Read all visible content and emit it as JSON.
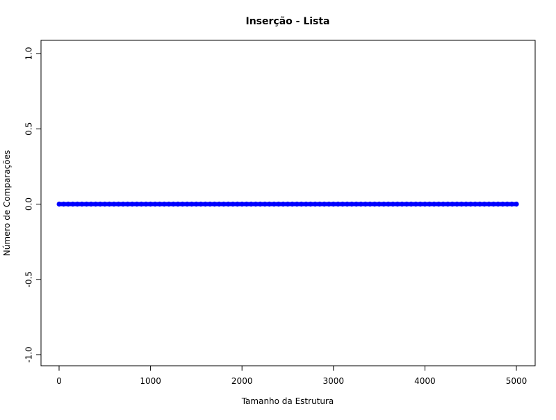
{
  "chart_data": {
    "type": "scatter",
    "title": "Inserção - Lista",
    "xlabel": "Tamanho da Estrutura",
    "ylabel": "Número de Comparações",
    "xlim": [
      0,
      5000
    ],
    "ylim": [
      -1.0,
      1.0
    ],
    "x_ticks": [
      0,
      1000,
      2000,
      3000,
      4000,
      5000
    ],
    "x_tick_labels": [
      "0",
      "1000",
      "2000",
      "3000",
      "4000",
      "5000"
    ],
    "y_ticks": [
      -1.0,
      -0.5,
      0.0,
      0.5,
      1.0
    ],
    "y_tick_labels": [
      "-1.0",
      "-0.5",
      "0.0",
      "0.5",
      "1.0"
    ],
    "grid": false,
    "series": [
      {
        "color": "#0000ff",
        "x": [
          1,
          50,
          100,
          150,
          200,
          250,
          300,
          350,
          400,
          450,
          500,
          550,
          600,
          650,
          700,
          750,
          800,
          850,
          900,
          950,
          1000,
          1050,
          1100,
          1150,
          1200,
          1250,
          1300,
          1350,
          1400,
          1450,
          1500,
          1550,
          1600,
          1650,
          1700,
          1750,
          1800,
          1850,
          1900,
          1950,
          2000,
          2050,
          2100,
          2150,
          2200,
          2250,
          2300,
          2350,
          2400,
          2450,
          2500,
          2550,
          2600,
          2650,
          2700,
          2750,
          2800,
          2850,
          2900,
          2950,
          3000,
          3050,
          3100,
          3150,
          3200,
          3250,
          3300,
          3350,
          3400,
          3450,
          3500,
          3550,
          3600,
          3650,
          3700,
          3750,
          3800,
          3850,
          3900,
          3950,
          4000,
          4050,
          4100,
          4150,
          4200,
          4250,
          4300,
          4350,
          4400,
          4450,
          4500,
          4550,
          4600,
          4650,
          4700,
          4750,
          4800,
          4850,
          4900,
          4950,
          5000
        ],
        "y": [
          0,
          0,
          0,
          0,
          0,
          0,
          0,
          0,
          0,
          0,
          0,
          0,
          0,
          0,
          0,
          0,
          0,
          0,
          0,
          0,
          0,
          0,
          0,
          0,
          0,
          0,
          0,
          0,
          0,
          0,
          0,
          0,
          0,
          0,
          0,
          0,
          0,
          0,
          0,
          0,
          0,
          0,
          0,
          0,
          0,
          0,
          0,
          0,
          0,
          0,
          0,
          0,
          0,
          0,
          0,
          0,
          0,
          0,
          0,
          0,
          0,
          0,
          0,
          0,
          0,
          0,
          0,
          0,
          0,
          0,
          0,
          0,
          0,
          0,
          0,
          0,
          0,
          0,
          0,
          0,
          0,
          0,
          0,
          0,
          0,
          0,
          0,
          0,
          0,
          0,
          0,
          0,
          0,
          0,
          0,
          0,
          0,
          0,
          0,
          0,
          0
        ]
      }
    ]
  }
}
